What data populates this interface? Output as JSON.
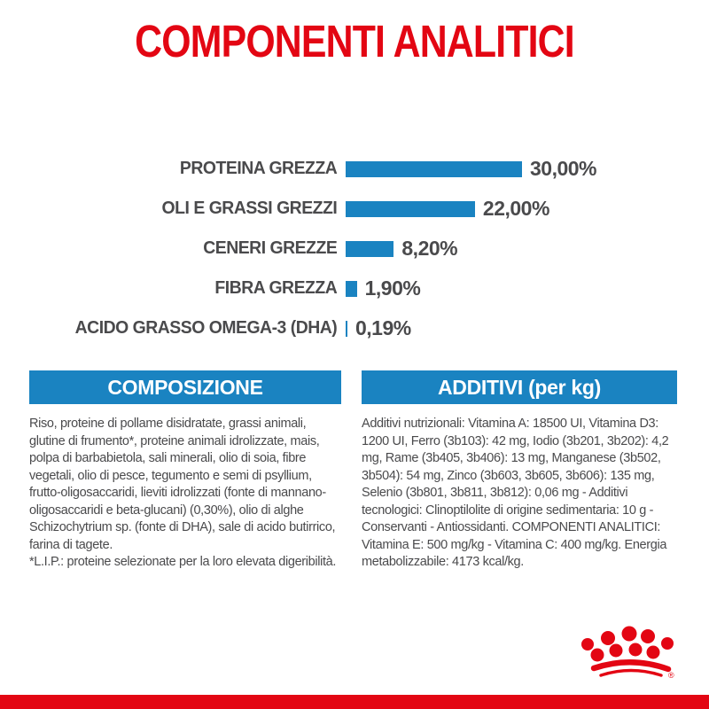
{
  "page": {
    "title": "COMPONENTI ANALITICI"
  },
  "colors": {
    "brand_red": "#e30613",
    "bar_blue": "#1a83c1",
    "text_gray": "#4a4a4c"
  },
  "chart_data": {
    "type": "bar",
    "orientation": "horizontal",
    "title": "COMPONENTI ANALITICI",
    "categories": [
      "PROTEINA GREZZA",
      "OLI E GRASSI GREZZI",
      "CENERI GREZZE",
      "FIBRA GREZZA",
      "ACIDO GRASSO OMEGA-3 (DHA)"
    ],
    "values": [
      30.0,
      22.0,
      8.2,
      1.9,
      0.19
    ],
    "value_labels": [
      "30,00%",
      "22,00%",
      "8,20%",
      "1,90%",
      "0,19%"
    ],
    "unit": "%",
    "xlim": [
      0,
      30
    ],
    "grid": false,
    "legend": false,
    "bar_color": "#1a83c1"
  },
  "composition": {
    "header": "COMPOSIZIONE",
    "body": "Riso, proteine di pollame disidratate, grassi animali, glutine di frumento*, proteine animali idrolizzate, mais, polpa di barbabietola, sali minerali, olio di soia, fibre vegetali, olio di pesce, tegumento e semi di psyllium, frutto-oligosaccaridi, lieviti idrolizzati (fonte di mannano-oligosaccaridi e beta-glucani) (0,30%), olio di alghe Schizochytrium sp. (fonte di DHA), sale di acido butirrico, farina di tagete.",
    "footnote": "*L.I.P.: proteine selezionate per la loro elevata digeribilità."
  },
  "additives": {
    "header": "ADDITIVI (per kg)",
    "body": "Additivi nutrizionali: Vitamina A: 18500 UI, Vitamina D3: 1200 UI, Ferro (3b103): 42 mg, Iodio (3b201, 3b202): 4,2 mg, Rame (3b405, 3b406): 13 mg, Manganese (3b502, 3b504): 54 mg, Zinco (3b603, 3b605, 3b606): 135 mg, Selenio (3b801, 3b811, 3b812): 0,06 mg - Additivi tecnologici: Clinoptilolite di origine sedimentaria: 10 g - Conservanti - Antiossidanti. COMPONENTI ANALITICI: Vitamina E: 500 mg/kg - Vitamina C: 400 mg/kg. Energia metabolizzabile: 4173 kcal/kg."
  },
  "logo": {
    "name": "royal-canin-crown",
    "registered_mark": "®"
  }
}
